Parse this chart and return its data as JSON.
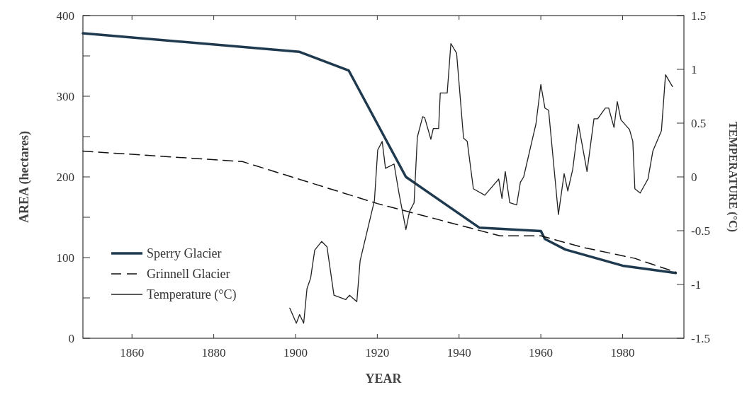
{
  "chart_data": {
    "type": "line",
    "xlabel": "YEAR",
    "ylabel": "AREA (hectares)",
    "y2label": "TEMPERATURE (°C)",
    "xlim": [
      1848,
      1995
    ],
    "xticks": [
      1860,
      1880,
      1900,
      1920,
      1940,
      1960,
      1980
    ],
    "ylim": [
      0,
      400
    ],
    "yticks": [
      0,
      {
        "value": 50,
        "label": null
      },
      100,
      {
        "value": 150,
        "label": null
      },
      200,
      {
        "value": 250,
        "label": null
      },
      300,
      {
        "value": 350,
        "label": null
      },
      400
    ],
    "y2lim": [
      -1.5,
      1.5
    ],
    "y2ticks": [
      -1.5,
      -1,
      -0.5,
      0,
      0.5,
      1,
      1.5
    ],
    "grid": false,
    "legend": "bottom left",
    "marker": "none",
    "series": [
      {
        "name": "Sperry Glacier",
        "color": "#1f3a4f",
        "line_style": "solid",
        "x": [
          1848,
          1901,
          1913,
          1927,
          1945,
          1960,
          1961,
          1966,
          1980,
          1993
        ],
        "values": [
          378,
          355,
          332,
          200,
          137,
          133,
          123,
          110,
          90,
          81
        ]
      },
      {
        "name": "Grinnell Glacier",
        "color": "#111111",
        "line_style": "dashed",
        "x": [
          1848,
          1887,
          1901,
          1920,
          1950,
          1960,
          1970,
          1983,
          1993
        ],
        "values": [
          232,
          219,
          197,
          167,
          127,
          127,
          113,
          99,
          82
        ]
      },
      {
        "name": "Temperature (°C)",
        "color": "#222222",
        "line_style": "solid",
        "axis": "y2",
        "x": [
          1898.6,
          1900.2,
          1901,
          1902,
          1902.8,
          1903.7,
          1904.7,
          1906.4,
          1907.7,
          1909.4,
          1912.3,
          1913.2,
          1915,
          1915.8,
          1919.3,
          1920.1,
          1921.2,
          1922,
          1924.1,
          1925.3,
          1927,
          1927.9,
          1929,
          1929.8,
          1931.1,
          1931.6,
          1933.1,
          1933.7,
          1935,
          1935.4,
          1937.1,
          1938,
          1939.4,
          1941.1,
          1942,
          1943.5,
          1946.3,
          1949.7,
          1950.5,
          1951.3,
          1952.4,
          1954.1,
          1955,
          1955.8,
          1958.3,
          1958.8,
          1960,
          1961,
          1961.9,
          1964.3,
          1965.7,
          1966.6,
          1967.8,
          1969.2,
          1971.3,
          1973,
          1973.9,
          1975.8,
          1976.6,
          1977.9,
          1978.7,
          1979.6,
          1981.7,
          1982.5,
          1983,
          1984.3,
          1986.2,
          1987.4,
          1989.5,
          1990.5,
          1992.2
        ],
        "values": [
          -1.22,
          -1.36,
          -1.28,
          -1.36,
          -1.04,
          -0.94,
          -0.68,
          -0.6,
          -0.65,
          -1.1,
          -1.14,
          -1.1,
          -1.16,
          -0.78,
          -0.22,
          0.25,
          0.33,
          0.08,
          0.12,
          -0.15,
          -0.49,
          -0.32,
          -0.24,
          0.37,
          0.56,
          0.55,
          0.35,
          0.45,
          0.45,
          0.78,
          0.78,
          1.24,
          1.15,
          0.36,
          0.33,
          -0.11,
          -0.17,
          -0.02,
          -0.2,
          0.05,
          -0.24,
          -0.26,
          -0.05,
          0,
          0.41,
          0.49,
          0.86,
          0.64,
          0.62,
          -0.35,
          0.03,
          -0.13,
          0.07,
          0.49,
          0.05,
          0.54,
          0.54,
          0.64,
          0.64,
          0.46,
          0.7,
          0.53,
          0.44,
          0.33,
          -0.11,
          -0.15,
          -0.02,
          0.24,
          0.43,
          0.95,
          0.84
        ]
      }
    ]
  }
}
